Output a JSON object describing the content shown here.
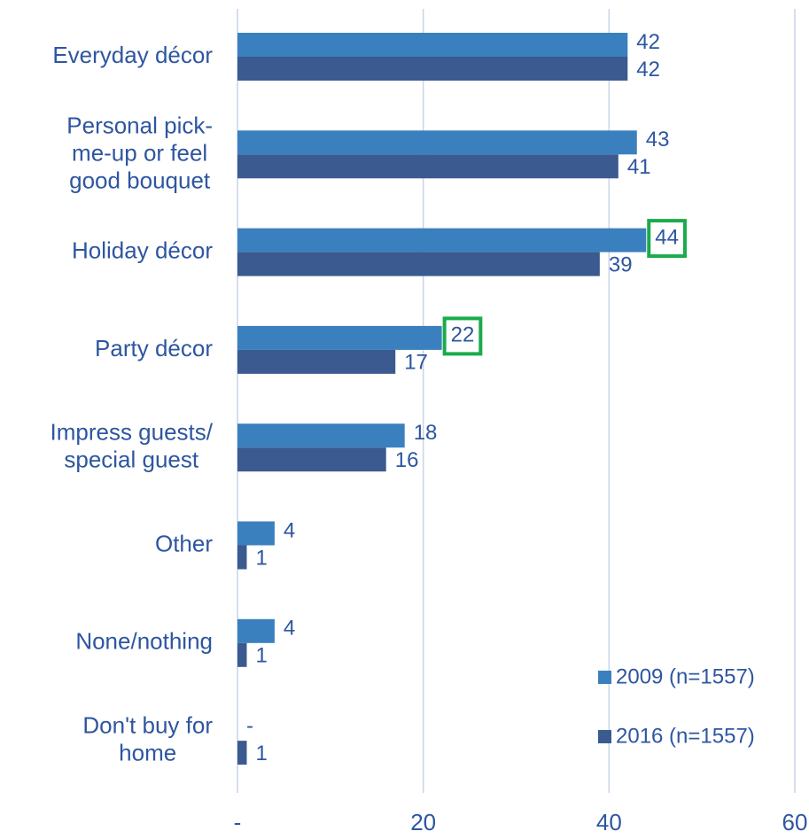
{
  "chart_data": {
    "type": "hbar",
    "categories": [
      "Everyday décor",
      "Personal pick-\nme-up or feel\ngood bouquet",
      "Holiday décor",
      "Party décor",
      "Impress guests/\nspecial guest",
      "Other",
      "None/nothing",
      "Don't buy for\nhome"
    ],
    "series": [
      {
        "name": "2009 (n=1557)",
        "color": "#3b80be",
        "values": [
          42,
          43,
          44,
          22,
          18,
          4,
          4,
          0
        ],
        "value_labels": [
          "42",
          "43",
          "44",
          "22",
          "18",
          "4",
          "4",
          "-"
        ]
      },
      {
        "name": "2016 (n=1557)",
        "color": "#3b5a8f",
        "values": [
          42,
          41,
          39,
          17,
          16,
          1,
          1,
          1
        ]
      }
    ],
    "xlim": [
      0,
      60
    ],
    "xticks": [
      {
        "value": 0,
        "label": "-"
      },
      20,
      40,
      60
    ],
    "grid": true,
    "legend": "lower right",
    "highlight": {
      "color": "#1aab4b",
      "series": 0,
      "indices": [
        2,
        3
      ]
    }
  }
}
